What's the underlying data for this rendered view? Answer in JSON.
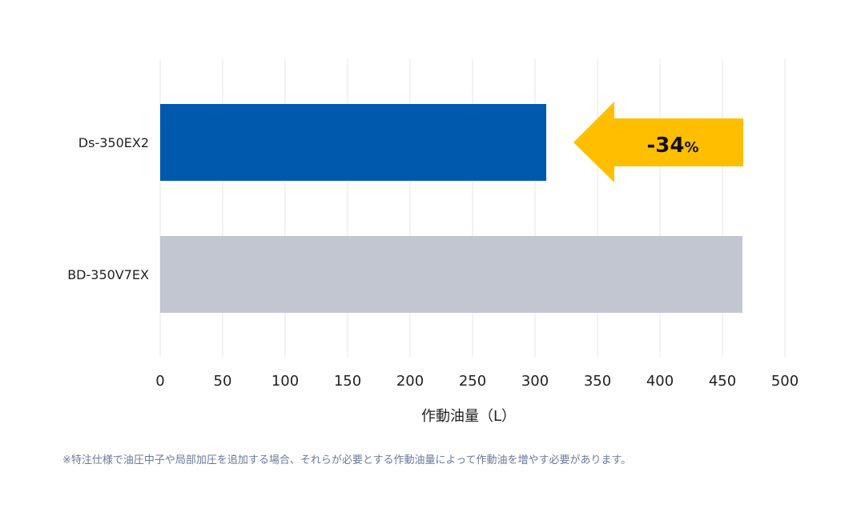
{
  "chart_data": {
    "type": "bar",
    "orientation": "horizontal",
    "categories": [
      "Ds-350EX2",
      "BD-350V7EX"
    ],
    "values": [
      309,
      466
    ],
    "xlabel": "作動油量（L）",
    "xlim": [
      0,
      500
    ],
    "xticks": [
      0,
      50,
      100,
      150,
      200,
      250,
      300,
      350,
      400,
      450,
      500
    ],
    "tick_labels": [
      "0",
      "50",
      "100",
      "150",
      "200",
      "250",
      "300",
      "350",
      "400",
      "450",
      "500"
    ],
    "grid": "vertical",
    "colors": [
      "#0059ad",
      "#c2c6d0"
    ],
    "annotation": {
      "value": "-34",
      "unit": "%",
      "color": "#ffbf00"
    }
  },
  "footnote": "※特注仕様で油圧中子や局部加圧を追加する場合、それらが必要とする作動油量によって作動油を増やす必要があります。"
}
